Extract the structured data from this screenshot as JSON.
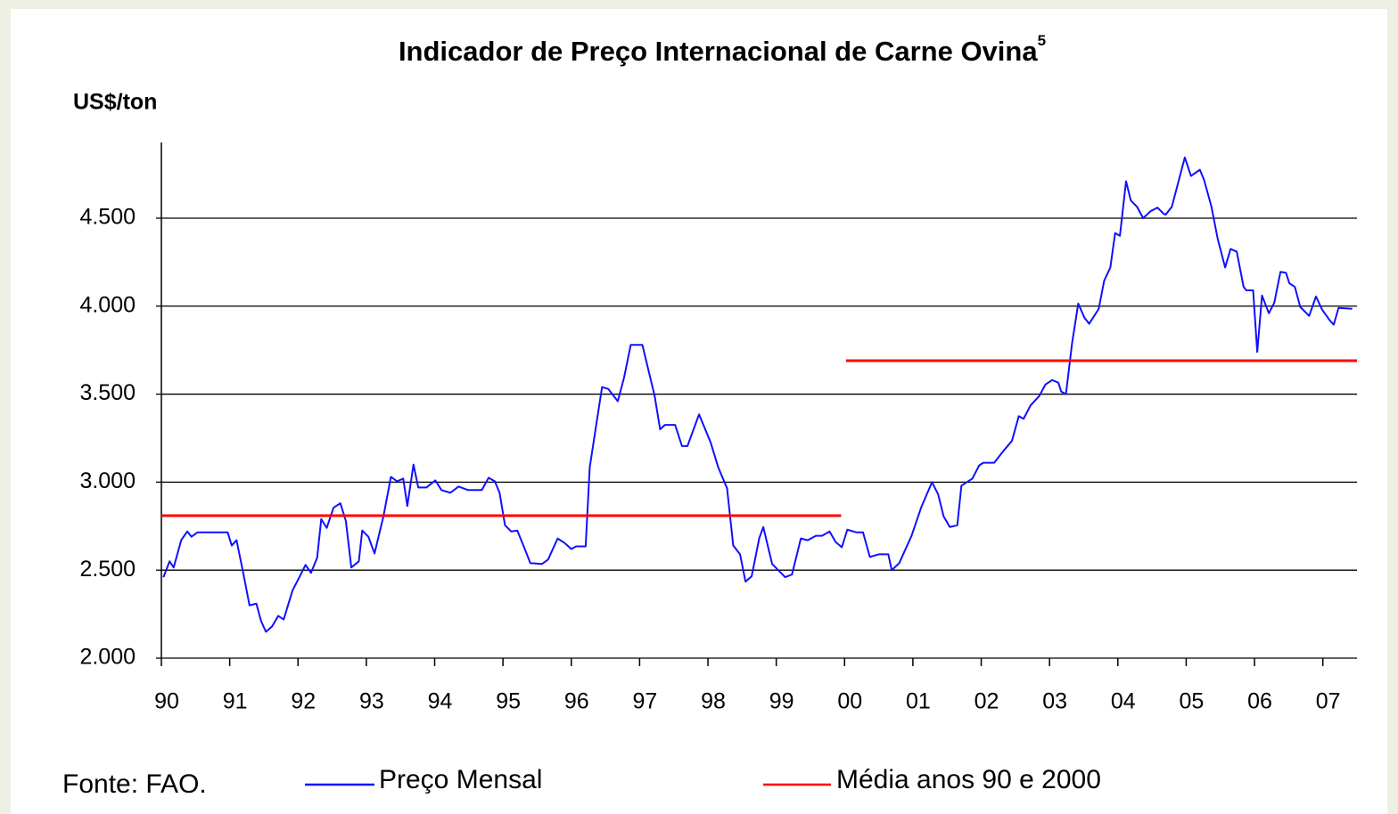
{
  "chart_data": {
    "type": "line",
    "title": "Indicador de Preço Internacional de Carne Ovina",
    "title_superscript": "5",
    "y_label": "US$/ton",
    "source": "Fonte: FAO.",
    "xlim": [
      1990,
      2007.5
    ],
    "xticks": [
      {
        "value": 1990,
        "label": "90"
      },
      {
        "value": 1991,
        "label": "91"
      },
      {
        "value": 1992,
        "label": "92"
      },
      {
        "value": 1993,
        "label": "93"
      },
      {
        "value": 1994,
        "label": "94"
      },
      {
        "value": 1995,
        "label": "95"
      },
      {
        "value": 1996,
        "label": "96"
      },
      {
        "value": 1997,
        "label": "97"
      },
      {
        "value": 1998,
        "label": "98"
      },
      {
        "value": 1999,
        "label": "99"
      },
      {
        "value": 2000,
        "label": "00"
      },
      {
        "value": 2001,
        "label": "01"
      },
      {
        "value": 2002,
        "label": "02"
      },
      {
        "value": 2003,
        "label": "03"
      },
      {
        "value": 2004,
        "label": "04"
      },
      {
        "value": 2005,
        "label": "05"
      },
      {
        "value": 2006,
        "label": "06"
      },
      {
        "value": 2007,
        "label": "07"
      }
    ],
    "ylim": [
      2000,
      4930
    ],
    "yticks": [
      {
        "value": 2000,
        "label": "2.000"
      },
      {
        "value": 2500,
        "label": "2.500"
      },
      {
        "value": 3000,
        "label": "3.000"
      },
      {
        "value": 3500,
        "label": "3.500"
      },
      {
        "value": 4000,
        "label": "4.000"
      },
      {
        "value": 4500,
        "label": "4.500"
      }
    ],
    "grid": true,
    "series": [
      {
        "name": "Preço Mensal",
        "color": "#1010ff",
        "x": [
          1990.03,
          1990.12,
          1990.18,
          1990.29,
          1990.38,
          1990.44,
          1990.53,
          1990.97,
          1991.03,
          1991.1,
          1991.19,
          1991.29,
          1991.39,
          1991.46,
          1991.53,
          1991.62,
          1991.71,
          1991.79,
          1991.92,
          1992.02,
          1992.11,
          1992.19,
          1992.28,
          1992.34,
          1992.42,
          1992.52,
          1992.62,
          1992.7,
          1992.78,
          1992.89,
          1992.94,
          1993.03,
          1993.12,
          1993.25,
          1993.36,
          1993.45,
          1993.54,
          1993.6,
          1993.69,
          1993.76,
          1993.88,
          1994.01,
          1994.1,
          1994.23,
          1994.35,
          1994.49,
          1994.69,
          1994.79,
          1994.88,
          1994.95,
          1995.03,
          1995.12,
          1995.21,
          1995.33,
          1995.4,
          1995.57,
          1995.66,
          1995.8,
          1995.9,
          1996.0,
          1996.07,
          1996.21,
          1996.27,
          1996.45,
          1996.54,
          1996.68,
          1996.77,
          1996.87,
          1997.04,
          1997.22,
          1997.3,
          1997.37,
          1997.52,
          1997.62,
          1997.7,
          1997.87,
          1998.04,
          1998.15,
          1998.28,
          1998.37,
          1998.47,
          1998.55,
          1998.64,
          1998.75,
          1998.81,
          1998.94,
          1999.13,
          1999.23,
          1999.36,
          1999.46,
          1999.58,
          1999.67,
          1999.78,
          1999.87,
          1999.96,
          2000.04,
          2000.17,
          2000.27,
          2000.37,
          2000.5,
          2000.64,
          2000.69,
          2000.8,
          2000.98,
          2001.12,
          2001.28,
          2001.37,
          2001.45,
          2001.54,
          2001.65,
          2001.71,
          2001.87,
          2001.97,
          2002.03,
          2002.19,
          2002.32,
          2002.45,
          2002.55,
          2002.62,
          2002.72,
          2002.85,
          2002.94,
          2003.04,
          2003.13,
          2003.17,
          2003.24,
          2003.33,
          2003.42,
          2003.51,
          2003.58,
          2003.72,
          2003.8,
          2003.89,
          2003.96,
          2004.03,
          2004.12,
          2004.19,
          2004.28,
          2004.37,
          2004.48,
          2004.58,
          2004.67,
          2004.7,
          2004.79,
          2004.98,
          2005.07,
          2005.2,
          2005.26,
          2005.37,
          2005.46,
          2005.57,
          2005.65,
          2005.74,
          2005.84,
          2005.88,
          2005.98,
          2006.04,
          2006.11,
          2006.21,
          2006.29,
          2006.38,
          2006.46,
          2006.51,
          2006.59,
          2006.67,
          2006.8,
          2006.9,
          2006.99,
          2007.1,
          2007.16,
          2007.23,
          2007.43
        ],
        "values": [
          2460,
          2550,
          2515,
          2670,
          2720,
          2690,
          2715,
          2715,
          2640,
          2670,
          2500,
          2300,
          2310,
          2210,
          2150,
          2180,
          2240,
          2220,
          2385,
          2460,
          2530,
          2485,
          2570,
          2790,
          2740,
          2855,
          2880,
          2780,
          2515,
          2550,
          2725,
          2690,
          2595,
          2805,
          3030,
          3005,
          3020,
          2865,
          3100,
          2970,
          2970,
          3010,
          2955,
          2940,
          2975,
          2955,
          2955,
          3025,
          3005,
          2940,
          2755,
          2720,
          2725,
          2610,
          2540,
          2535,
          2560,
          2680,
          2655,
          2620,
          2635,
          2635,
          3085,
          3540,
          3530,
          3460,
          3590,
          3780,
          3780,
          3490,
          3300,
          3325,
          3325,
          3205,
          3205,
          3385,
          3225,
          3085,
          2965,
          2640,
          2590,
          2435,
          2465,
          2680,
          2745,
          2535,
          2460,
          2475,
          2680,
          2670,
          2695,
          2695,
          2720,
          2660,
          2630,
          2730,
          2715,
          2715,
          2575,
          2590,
          2590,
          2500,
          2540,
          2695,
          2855,
          3000,
          2930,
          2805,
          2745,
          2755,
          2980,
          3020,
          3095,
          3110,
          3110,
          3175,
          3235,
          3375,
          3360,
          3435,
          3490,
          3555,
          3580,
          3565,
          3515,
          3500,
          3790,
          4015,
          3935,
          3900,
          3985,
          4145,
          4220,
          4415,
          4400,
          4710,
          4600,
          4565,
          4500,
          4540,
          4560,
          4525,
          4520,
          4565,
          4845,
          4740,
          4775,
          4720,
          4565,
          4385,
          4220,
          4325,
          4310,
          4110,
          4090,
          4090,
          3740,
          4060,
          3960,
          4020,
          4195,
          4190,
          4130,
          4110,
          3995,
          3945,
          4055,
          3980,
          3920,
          3895,
          3990,
          3985
        ]
      },
      {
        "name": "Média anos 90 e 2000",
        "color": "#ff0000",
        "x": [
          1990,
          1999.95,
          2000,
          2000.02,
          2007.5
        ],
        "values": [
          2810,
          2810,
          null,
          3690,
          3690
        ]
      }
    ]
  }
}
